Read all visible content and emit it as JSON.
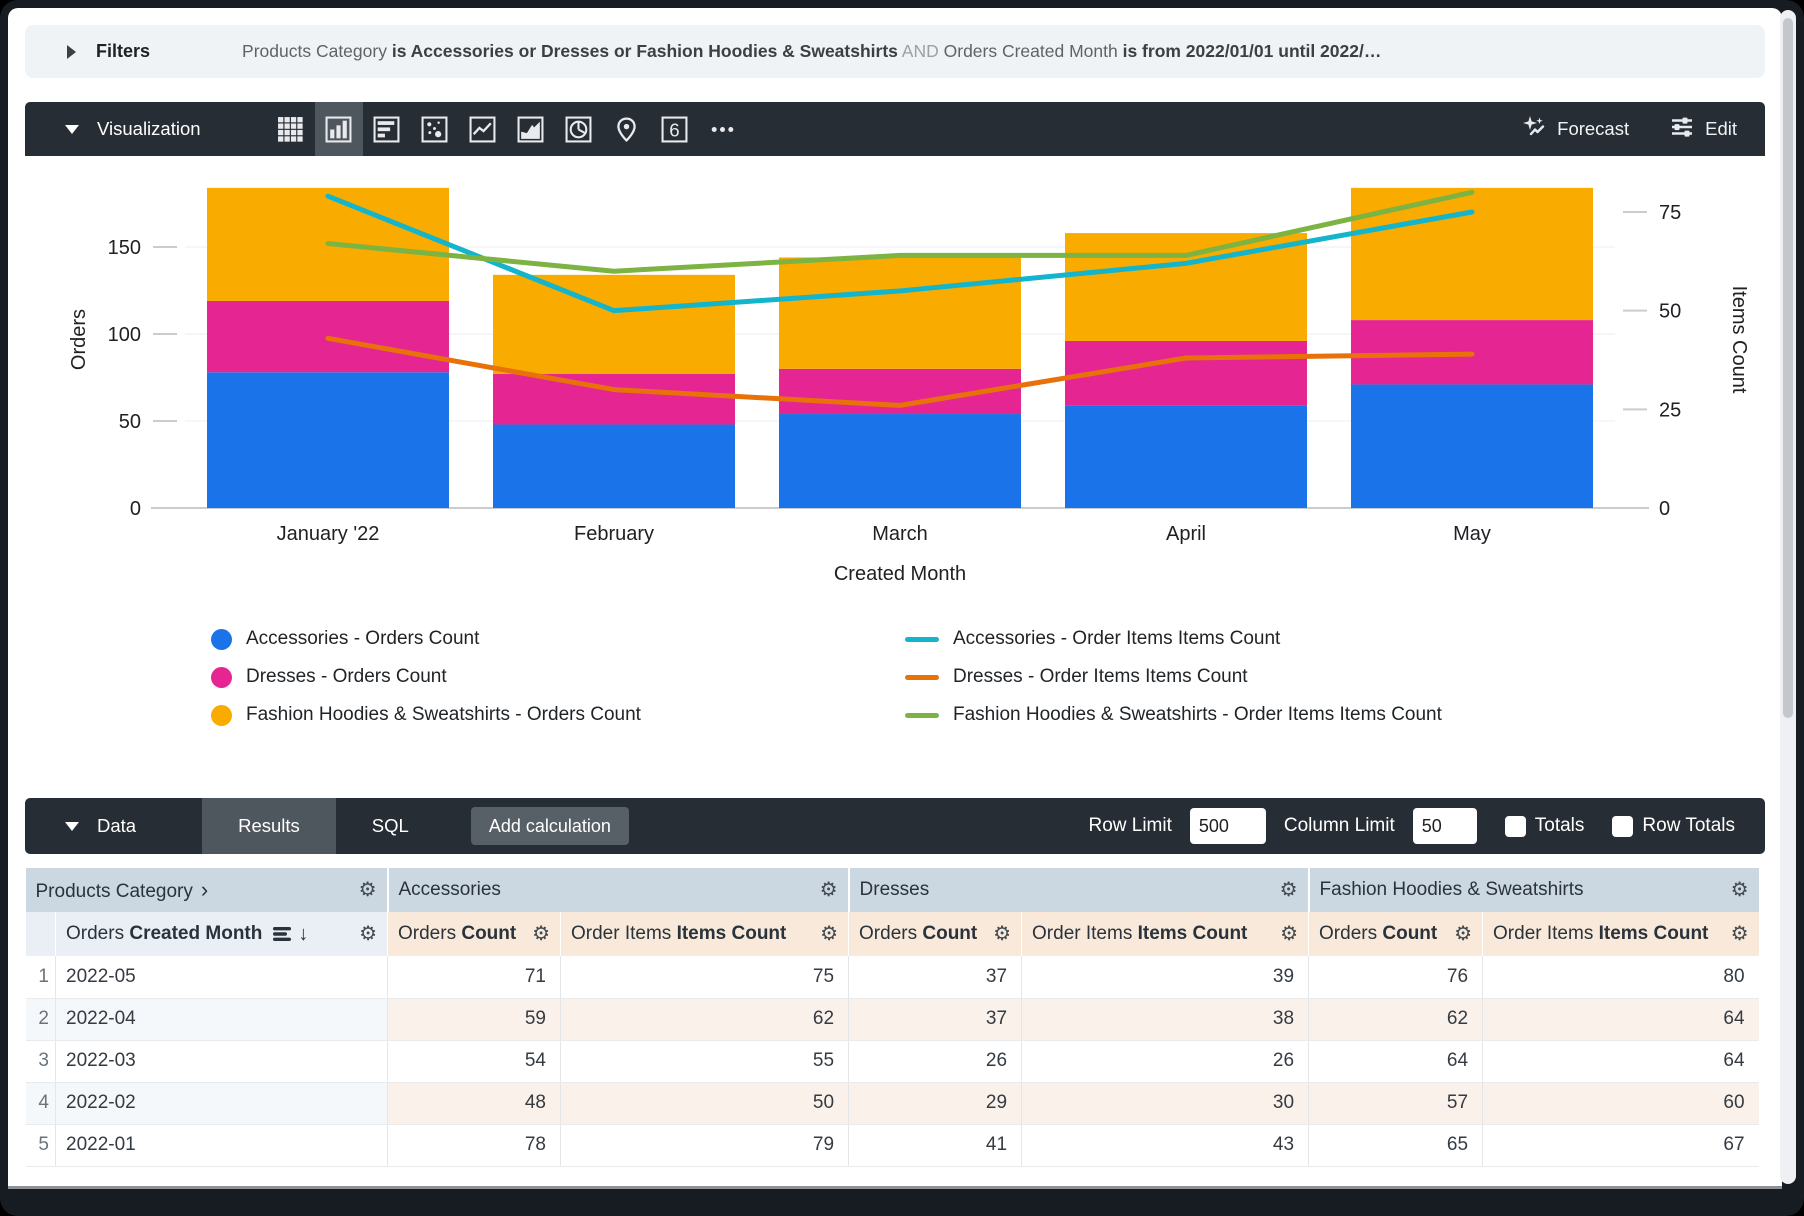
{
  "filters": {
    "label": "Filters",
    "parts": [
      {
        "text": "Products Category ",
        "style": "plain"
      },
      {
        "text": "is Accessories or Dresses or Fashion Hoodies & Sweatshirts",
        "style": "strong"
      },
      {
        "text": " AND ",
        "style": "muted"
      },
      {
        "text": "Orders Created Month ",
        "style": "plain"
      },
      {
        "text": "is from 2022/01/01 until 2022/…",
        "style": "strong"
      }
    ]
  },
  "viz_bar": {
    "title": "Visualization",
    "icons": [
      "table",
      "column-chart",
      "bar-chart",
      "scatter",
      "line-chart",
      "area-chart",
      "pie-chart",
      "map",
      "single-value",
      "more"
    ],
    "selected_icon": "column-chart",
    "single_value_label": "6",
    "forecast_label": "Forecast",
    "edit_label": "Edit"
  },
  "chart_data": {
    "type": "combo: stacked bar + line",
    "categories": [
      "January '22",
      "February",
      "March",
      "April",
      "May"
    ],
    "bar_series": [
      {
        "name": "Accessories - Orders Count",
        "color": "#1A73E8",
        "values": [
          78,
          48,
          54,
          59,
          71
        ]
      },
      {
        "name": "Dresses - Orders Count",
        "color": "#E52592",
        "values": [
          41,
          29,
          26,
          37,
          37
        ]
      },
      {
        "name": "Fashion Hoodies & Sweatshirts - Orders Count",
        "color": "#F9AB00",
        "values": [
          65,
          57,
          64,
          62,
          76
        ]
      }
    ],
    "line_series": [
      {
        "name": "Accessories - Order Items Items Count",
        "color": "#12B5CB",
        "values": [
          79,
          50,
          55,
          62,
          75
        ]
      },
      {
        "name": "Dresses - Order Items Items Count",
        "color": "#E8710A",
        "values": [
          43,
          30,
          26,
          38,
          39
        ]
      },
      {
        "name": "Fashion Hoodies & Sweatshirts - Order Items Items Count",
        "color": "#7CB342",
        "values": [
          67,
          60,
          64,
          64,
          80
        ]
      }
    ],
    "left_axis": {
      "label": "Orders",
      "ticks": [
        0,
        50,
        100,
        150
      ],
      "max": 184
    },
    "right_axis": {
      "label": "Items Count",
      "ticks": [
        0,
        25,
        50,
        75
      ],
      "max": 80
    },
    "xlabel": "Created Month",
    "grid": true,
    "legend_position": "bottom"
  },
  "data_bar": {
    "title": "Data",
    "tabs": [
      "Results",
      "SQL"
    ],
    "active_tab": "Results",
    "add_calculation_label": "Add calculation",
    "row_limit_label": "Row Limit",
    "row_limit_value": "500",
    "column_limit_label": "Column Limit",
    "column_limit_value": "50",
    "totals_label": "Totals",
    "row_totals_label": "Row Totals"
  },
  "table": {
    "group_headers": [
      {
        "label": "Products Category",
        "chevron": "›"
      },
      {
        "label": "Accessories"
      },
      {
        "label": "Dresses"
      },
      {
        "label": "Fashion Hoodies & Sweatshirts"
      }
    ],
    "dimension_header": {
      "prefix": "Orders ",
      "bold": "Created Month"
    },
    "measure_headers": [
      {
        "prefix": "Orders ",
        "bold": "Count"
      },
      {
        "prefix": "Order Items ",
        "bold": "Items Count"
      },
      {
        "prefix": "Orders ",
        "bold": "Count"
      },
      {
        "prefix": "Order Items ",
        "bold": "Items Count"
      },
      {
        "prefix": "Orders ",
        "bold": "Count"
      },
      {
        "prefix": "Order Items ",
        "bold": "Items Count"
      }
    ],
    "rows": [
      {
        "num": "1",
        "month": "2022-05",
        "values": [
          71,
          75,
          37,
          39,
          76,
          80
        ]
      },
      {
        "num": "2",
        "month": "2022-04",
        "values": [
          59,
          62,
          37,
          38,
          62,
          64
        ]
      },
      {
        "num": "3",
        "month": "2022-03",
        "values": [
          54,
          55,
          26,
          26,
          64,
          64
        ]
      },
      {
        "num": "4",
        "month": "2022-02",
        "values": [
          48,
          50,
          29,
          30,
          57,
          60
        ]
      },
      {
        "num": "5",
        "month": "2022-01",
        "values": [
          78,
          79,
          41,
          43,
          65,
          67
        ]
      }
    ]
  }
}
